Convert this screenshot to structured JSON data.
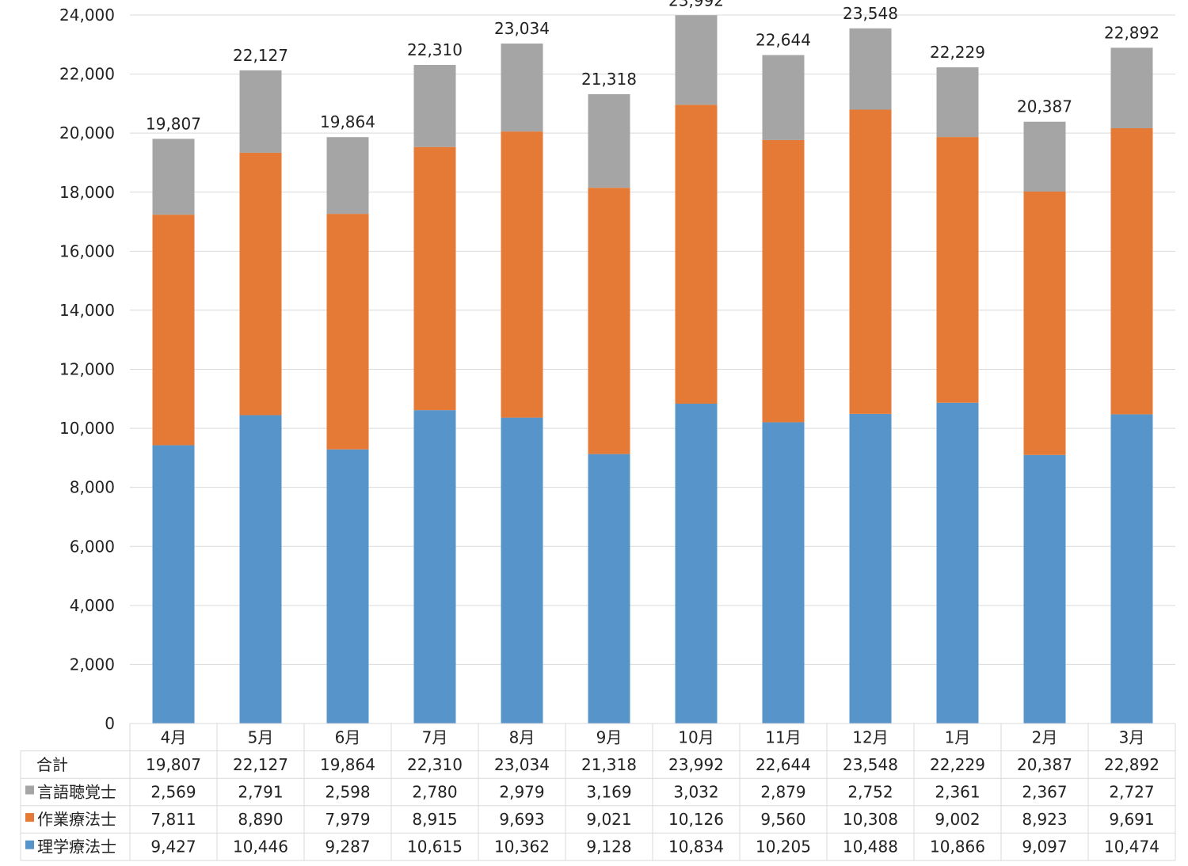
{
  "chart_data": {
    "type": "bar",
    "stacked": true,
    "categories": [
      "4月",
      "5月",
      "6月",
      "7月",
      "8月",
      "9月",
      "10月",
      "11月",
      "12月",
      "1月",
      "2月",
      "3月"
    ],
    "series": [
      {
        "name": "理学療法士",
        "color": "#5794c9",
        "values": [
          9427,
          10446,
          9287,
          10615,
          10362,
          9128,
          10834,
          10205,
          10488,
          10866,
          9097,
          10474
        ]
      },
      {
        "name": "作業療法士",
        "color": "#e47a35",
        "values": [
          7811,
          8890,
          7979,
          8915,
          9693,
          9021,
          10126,
          9560,
          10308,
          9002,
          8923,
          9691
        ]
      },
      {
        "name": "言語聴覚士",
        "color": "#a5a5a5",
        "values": [
          2569,
          2791,
          2598,
          2780,
          2979,
          3169,
          3032,
          2879,
          2752,
          2361,
          2367,
          2727
        ]
      }
    ],
    "totals": {
      "name": "合計",
      "values": [
        19807,
        22127,
        19864,
        22310,
        23034,
        21318,
        23992,
        22644,
        23548,
        22229,
        20387,
        22892
      ]
    },
    "ylim": [
      0,
      24000
    ],
    "yticks": [
      0,
      2000,
      4000,
      6000,
      8000,
      10000,
      12000,
      14000,
      16000,
      18000,
      20000,
      22000,
      24000
    ],
    "grid": true,
    "legend": "data-table",
    "title": "",
    "xlabel": "",
    "ylabel": ""
  }
}
